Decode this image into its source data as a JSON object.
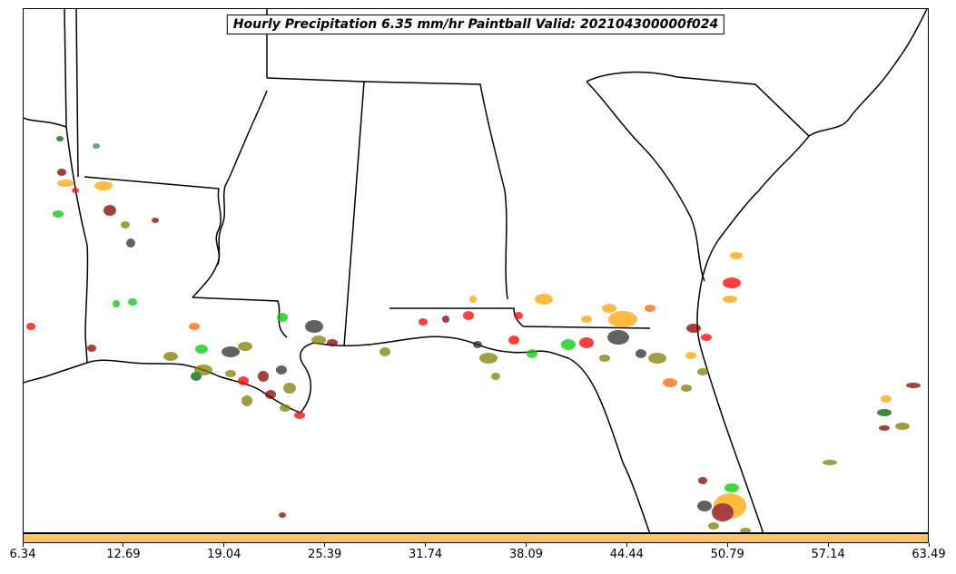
{
  "map": {
    "title": "Hourly Precipitation 6.35 mm/hr Paintball Valid: 202104300000f024",
    "region": "Southeastern United States",
    "colors": {
      "border": "#000000",
      "background": "#ffffff",
      "colorbar_fill": "#ffc266",
      "paintball_palette": [
        "#ff0000",
        "#ffa500",
        "#00cc00",
        "#808000",
        "#8b0000",
        "#2e2e2e",
        "#b8860b",
        "#006400",
        "#cc3333"
      ]
    },
    "colorbar": {
      "ticks": [
        "6.34",
        "12.69",
        "19.04",
        "25.39",
        "31.74",
        "38.09",
        "44.44",
        "50.79",
        "57.14",
        "63.49"
      ]
    }
  }
}
